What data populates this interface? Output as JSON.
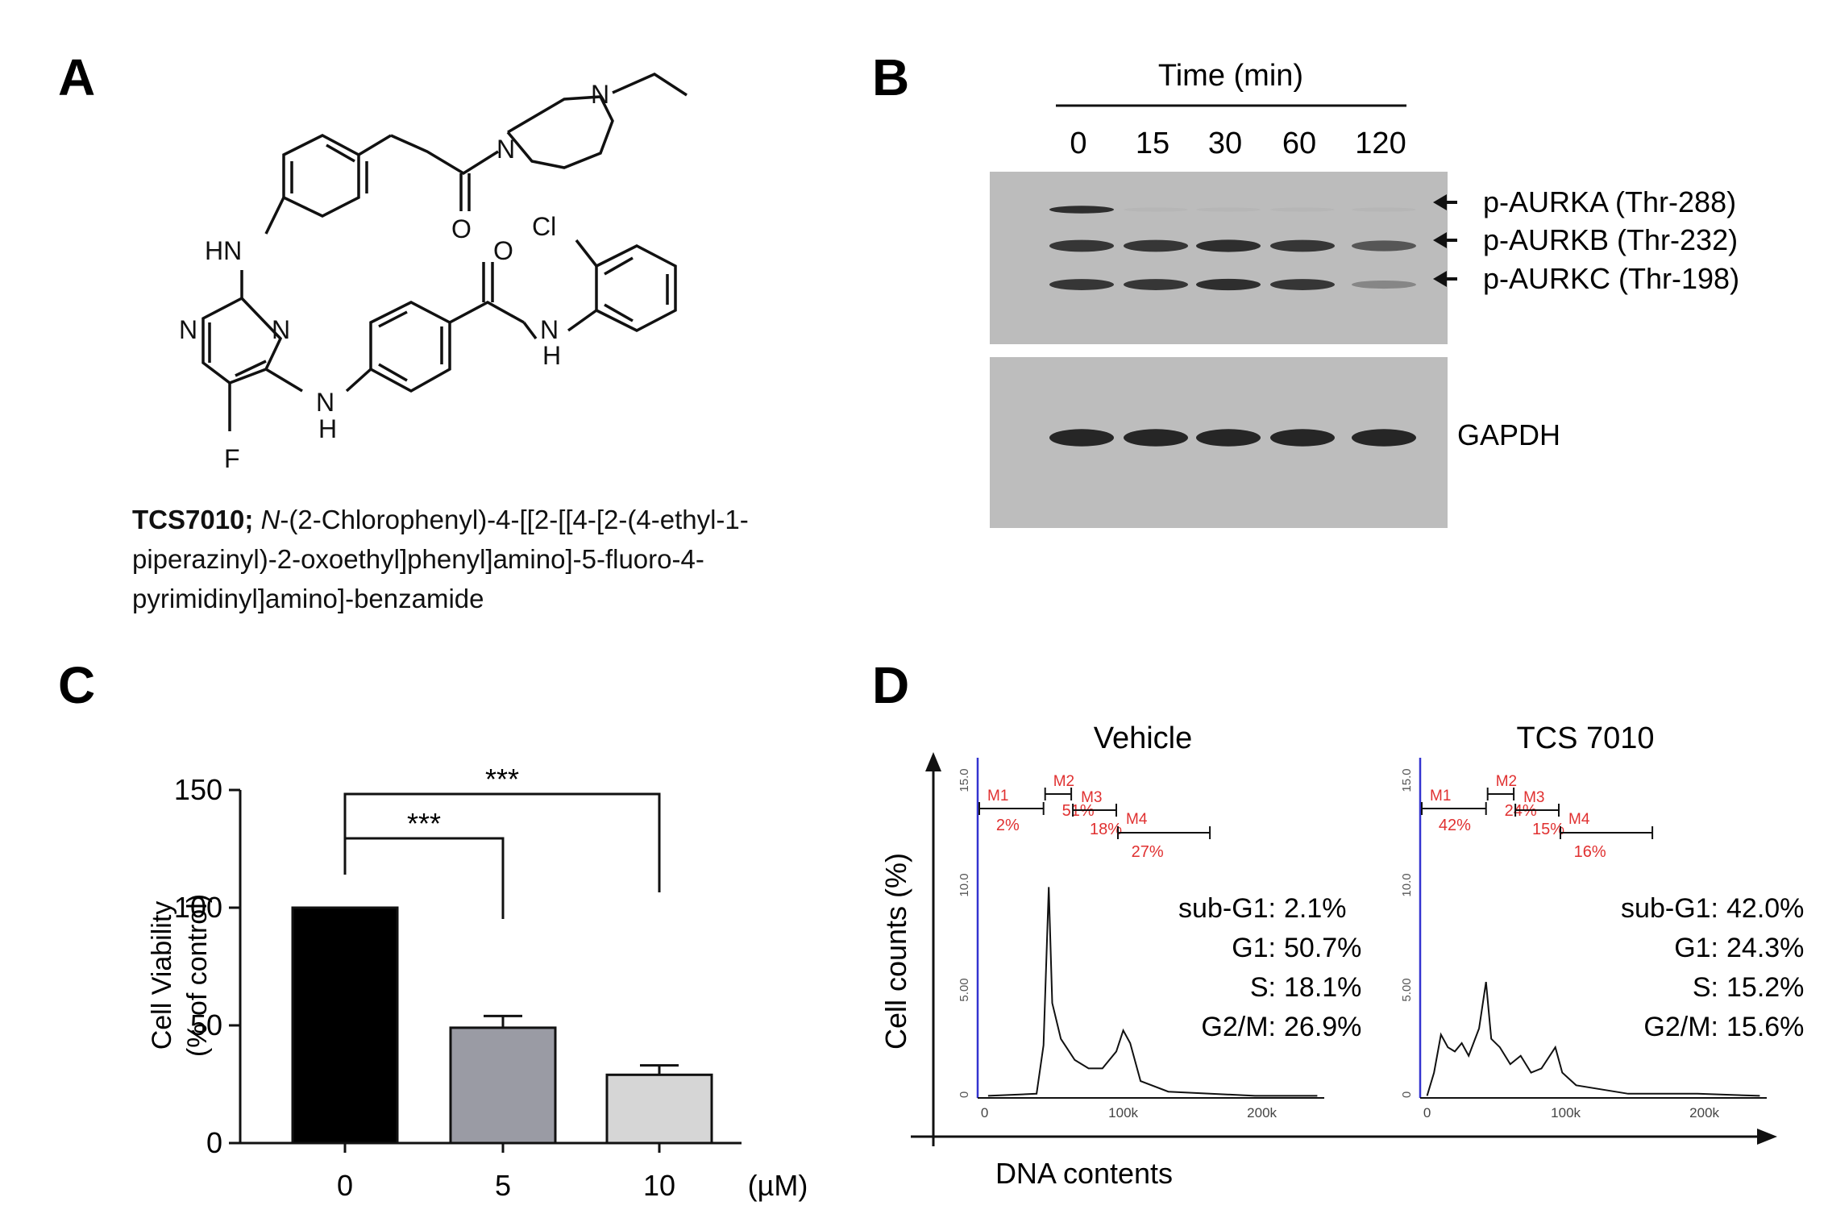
{
  "panels": {
    "A": {
      "letter": "A",
      "atoms": {
        "N_ethyl": "N",
        "N_amide": "N",
        "O_ketone": "O",
        "HN": "HN",
        "N_pyr1": "N",
        "N_pyr2": "N",
        "O_benzamide": "O",
        "Cl": "Cl",
        "N_anilide": "N",
        "H_anilide": "H",
        "N_link": "N",
        "H_link": "H",
        "F": "F"
      },
      "caption_bold": "TCS7010;",
      "caption_italic": "N",
      "caption_rest": "-(2-Chlorophenyl)-4-[[2-[[4-[2-(4-ethyl-1-piperazinyl)-2-oxoethyl]phenyl]amino]-5-fluoro-4-pyrimidinyl]amino]-benzamide"
    },
    "B": {
      "letter": "B",
      "time_header": "Time (min)",
      "lanes": [
        "0",
        "15",
        "30",
        "60",
        "120"
      ],
      "band_labels": [
        "p-AURKA (Thr-288)",
        "p-AURKB (Thr-232)",
        "p-AURKC (Thr-198)"
      ],
      "loading_label": "GAPDH",
      "band_intensity": {
        "p-AURKA": [
          0.9,
          0.05,
          0.05,
          0.05,
          0.05
        ],
        "p-AURKB": [
          0.85,
          0.85,
          0.9,
          0.85,
          0.65
        ],
        "p-AURKC": [
          0.85,
          0.85,
          0.9,
          0.85,
          0.35
        ],
        "GAPDH": [
          0.95,
          0.95,
          0.95,
          0.95,
          0.95
        ]
      }
    },
    "C": {
      "letter": "C",
      "unit_label": "(µM)"
    },
    "D": {
      "letter": "D",
      "x_axis_label": "DNA contents",
      "y_axis_label": "Cell counts (%)",
      "histogram_y_ticks": [
        "0",
        "5.00",
        "10.0",
        "15.0"
      ],
      "histogram_x_ticks": [
        "0",
        "100k",
        "200k"
      ],
      "gate_names": [
        "M1",
        "M2",
        "M3",
        "M4"
      ],
      "plots": [
        {
          "title": "Vehicle",
          "gate_percents": [
            "2%",
            "51%",
            "18%",
            "27%"
          ],
          "stats": [
            {
              "label": "sub-G1:",
              "value": "2.1%"
            },
            {
              "label": "G1:",
              "value": "50.7%"
            },
            {
              "label": "S:",
              "value": "18.1%"
            },
            {
              "label": "G2/M:",
              "value": "26.9%"
            }
          ]
        },
        {
          "title": "TCS 7010",
          "gate_percents": [
            "42%",
            "24%",
            "15%",
            "16%"
          ],
          "stats": [
            {
              "label": "sub-G1:",
              "value": "42.0%"
            },
            {
              "label": "G1:",
              "value": "24.3%"
            },
            {
              "label": "S:",
              "value": "15.2%"
            },
            {
              "label": "G2/M:",
              "value": "15.6%"
            }
          ]
        }
      ]
    }
  },
  "chart_data": {
    "type": "bar",
    "categories": [
      "0",
      "5",
      "10"
    ],
    "values": [
      100,
      49,
      29
    ],
    "errors": [
      0,
      5,
      4
    ],
    "bar_colors": [
      "#000000",
      "#9a9ba4",
      "#d6d6d6"
    ],
    "ylabel_line1": "Cell  Viability",
    "ylabel_line2": "(% of control)",
    "ylim": [
      0,
      150
    ],
    "yticks": [
      "0",
      "50",
      "100",
      "150"
    ],
    "significance": [
      {
        "from": "0",
        "to": "5",
        "label": "***"
      },
      {
        "from": "0",
        "to": "10",
        "label": "***"
      }
    ]
  }
}
